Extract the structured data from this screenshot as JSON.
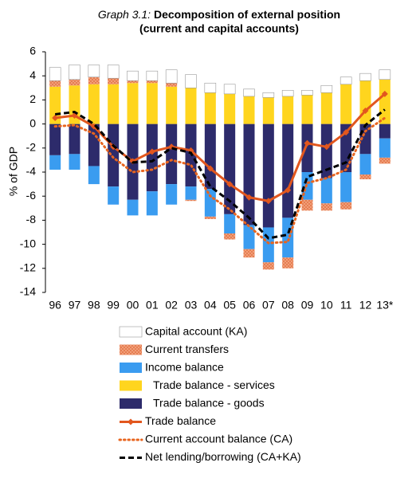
{
  "chart_data": {
    "type": "bar",
    "title_label": "Graph 3.1:",
    "title": [
      "Decomposition of external position",
      "(current and capital accounts)"
    ],
    "ylabel": "% of GDP",
    "categories": [
      "96",
      "97",
      "98",
      "99",
      "00",
      "01",
      "02",
      "03",
      "04",
      "05",
      "06",
      "07",
      "08",
      "09",
      "10",
      "11",
      "12",
      "13*"
    ],
    "ylim": [
      -14,
      6
    ],
    "yticks": [
      -14,
      -12,
      -10,
      -8,
      -6,
      -4,
      -2,
      0,
      2,
      4,
      6
    ],
    "series": [
      {
        "name": "Capital account (KA)",
        "type": "bar",
        "color": "#ffffff",
        "values": [
          1.1,
          1.2,
          1.0,
          1.1,
          0.8,
          0.8,
          1.1,
          1.1,
          0.8,
          0.8,
          0.6,
          0.4,
          0.5,
          0.4,
          0.6,
          0.6,
          0.6,
          0.8
        ]
      },
      {
        "name": "Current transfers",
        "type": "bar",
        "color": "#f4a582",
        "values": [
          0.5,
          0.5,
          0.6,
          0.5,
          0.2,
          0.2,
          0.3,
          -0.1,
          -0.2,
          -0.5,
          -0.7,
          -0.6,
          -0.9,
          -0.9,
          -0.6,
          -0.6,
          -0.4,
          -0.5
        ]
      },
      {
        "name": "Income balance",
        "type": "bar",
        "color": "#3a9cf0",
        "values": [
          -1.2,
          -1.3,
          -1.5,
          -1.5,
          -1.3,
          -2.0,
          -1.7,
          -1.1,
          -2.3,
          -1.6,
          -2.0,
          -2.9,
          -3.3,
          -2.3,
          -2.1,
          -2.5,
          -1.7,
          -1.6
        ]
      },
      {
        "name": "Trade balance - services",
        "type": "bar",
        "color": "#ffd51e",
        "values": [
          3.1,
          3.2,
          3.3,
          3.3,
          3.4,
          3.4,
          3.1,
          3.0,
          2.6,
          2.5,
          2.3,
          2.2,
          2.3,
          2.4,
          2.6,
          3.3,
          3.6,
          3.7
        ]
      },
      {
        "name": "Trade balance - goods",
        "type": "bar",
        "color": "#2d2b6b",
        "values": [
          -2.6,
          -2.5,
          -3.5,
          -5.2,
          -6.3,
          -5.6,
          -5.0,
          -5.2,
          -5.4,
          -7.5,
          -8.4,
          -8.6,
          -7.8,
          -4.0,
          -4.5,
          -4.0,
          -2.5,
          -1.2
        ]
      },
      {
        "name": "Trade balance",
        "type": "line",
        "style": "solid",
        "color": "#e2571e",
        "values": [
          0.5,
          0.7,
          -0.2,
          -1.9,
          -3.1,
          -2.3,
          -1.9,
          -2.2,
          -3.7,
          -5.0,
          -6.1,
          -6.4,
          -5.5,
          -1.6,
          -1.9,
          -0.7,
          1.1,
          2.5
        ]
      },
      {
        "name": "Current account balance (CA)",
        "type": "line",
        "style": "dotted",
        "color": "#e8651f",
        "values": [
          -0.2,
          -0.1,
          -0.8,
          -2.8,
          -4.0,
          -3.8,
          -3.0,
          -3.4,
          -6.0,
          -7.1,
          -8.5,
          -9.9,
          -9.8,
          -4.9,
          -4.5,
          -3.8,
          -0.6,
          0.5
        ]
      },
      {
        "name": "Net lending/borrowing (CA+KA)",
        "type": "line",
        "style": "dashed",
        "color": "#000000",
        "values": [
          0.8,
          1.0,
          0.0,
          -1.8,
          -3.2,
          -3.1,
          -2.0,
          -2.4,
          -5.2,
          -6.4,
          -7.8,
          -9.5,
          -9.2,
          -4.4,
          -3.8,
          -3.2,
          -0.1,
          1.2
        ]
      }
    ]
  }
}
